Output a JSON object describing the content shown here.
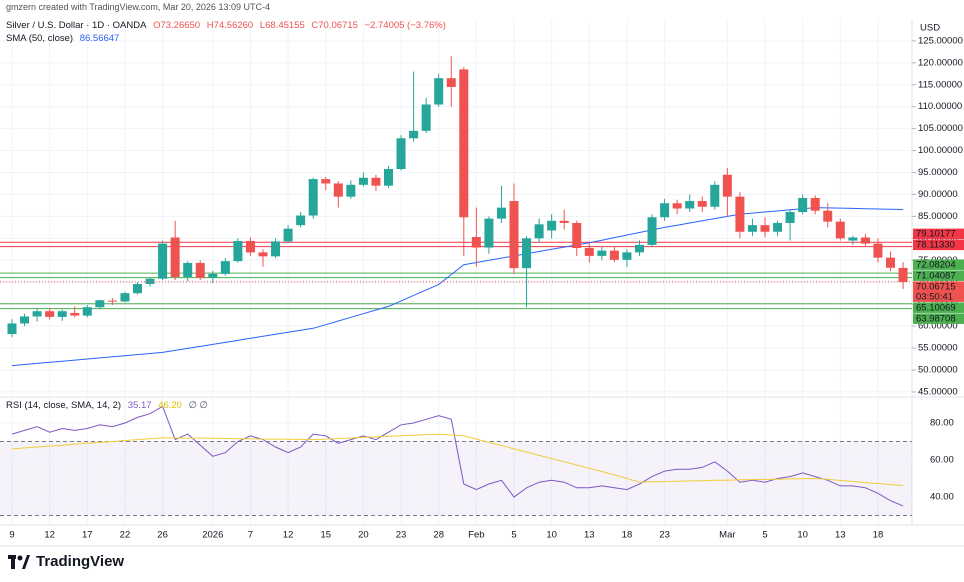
{
  "credit": "gmzern created with TradingView.com, Mar 20, 2026 13:09 UTC-4",
  "brand": "TradingView",
  "chart_data": [
    {
      "type": "candlestick",
      "title": "Silver / U.S. Dollar · 1D · OANDA",
      "ohlc_labels": [
        "O73.26650",
        "H74.56260",
        "L68.45155",
        "C70.06715"
      ],
      "change_label": "−2.74005 (−3.76%)",
      "currency": "USD",
      "countdown": "03:50:41",
      "categories": [
        "9",
        null,
        null,
        "12",
        null,
        null,
        "17",
        null,
        null,
        "22",
        null,
        null,
        "26",
        null,
        null,
        null,
        "2026",
        null,
        null,
        "7",
        null,
        null,
        "12",
        null,
        null,
        "15",
        null,
        null,
        "20",
        null,
        null,
        "23",
        null,
        null,
        "28",
        null,
        null,
        "Feb",
        null,
        null,
        "5",
        null,
        null,
        "10",
        null,
        null,
        "13",
        null,
        null,
        "18",
        null,
        null,
        "23",
        null,
        null,
        null,
        null,
        "Mar",
        null,
        null,
        "5",
        null,
        null,
        "10",
        null,
        null,
        "13",
        null,
        null,
        "18",
        null,
        null
      ],
      "ohlc": [
        [
          58.2,
          61.6,
          57.5,
          60.6
        ],
        [
          60.6,
          62.8,
          60.0,
          62.2
        ],
        [
          62.2,
          64.0,
          61.0,
          63.4
        ],
        [
          63.4,
          64.2,
          61.5,
          62.1
        ],
        [
          62.1,
          63.8,
          61.2,
          63.4
        ],
        [
          63.0,
          64.5,
          62.0,
          62.4
        ],
        [
          62.4,
          64.8,
          62.0,
          64.3
        ],
        [
          64.3,
          66.0,
          64.0,
          65.9
        ],
        [
          65.8,
          66.4,
          64.8,
          65.6
        ],
        [
          65.6,
          67.8,
          65.4,
          67.5
        ],
        [
          67.5,
          70.0,
          67.2,
          69.6
        ],
        [
          69.6,
          71.0,
          69.0,
          70.8
        ],
        [
          70.8,
          79.5,
          70.5,
          78.8
        ],
        [
          80.2,
          84.0,
          70.5,
          71.2
        ],
        [
          71.2,
          74.8,
          70.2,
          74.4
        ],
        [
          74.4,
          75.0,
          70.5,
          71.0
        ],
        [
          71.0,
          72.6,
          69.8,
          71.9
        ],
        [
          71.9,
          75.5,
          71.5,
          74.8
        ],
        [
          74.8,
          80.0,
          74.5,
          79.4
        ],
        [
          79.4,
          80.2,
          76.0,
          76.8
        ],
        [
          76.8,
          77.5,
          73.5,
          75.9
        ],
        [
          75.9,
          80.0,
          75.5,
          79.3
        ],
        [
          79.3,
          83.0,
          79.0,
          82.2
        ],
        [
          83.0,
          86.0,
          82.5,
          85.2
        ],
        [
          85.2,
          93.8,
          84.5,
          93.5
        ],
        [
          93.5,
          94.0,
          91.0,
          92.5
        ],
        [
          92.5,
          93.0,
          87.0,
          89.5
        ],
        [
          89.5,
          93.2,
          89.0,
          92.2
        ],
        [
          92.2,
          95.0,
          91.8,
          93.8
        ],
        [
          93.8,
          94.5,
          90.8,
          92.0
        ],
        [
          92.0,
          96.5,
          91.5,
          95.8
        ],
        [
          95.8,
          103.5,
          95.5,
          102.8
        ],
        [
          102.8,
          118.0,
          102.0,
          104.5
        ],
        [
          104.5,
          112.0,
          104.0,
          110.5
        ],
        [
          110.5,
          117.5,
          110.0,
          116.5
        ],
        [
          116.5,
          121.5,
          110.0,
          114.5
        ],
        [
          118.5,
          119.0,
          76.0,
          84.8
        ],
        [
          80.3,
          87.0,
          73.5,
          77.9
        ],
        [
          77.9,
          85.0,
          76.5,
          84.5
        ],
        [
          84.5,
          92.0,
          83.5,
          87.0
        ],
        [
          88.5,
          92.5,
          72.0,
          73.2
        ],
        [
          73.2,
          80.5,
          64.3,
          80.0
        ],
        [
          80.0,
          84.5,
          79.0,
          83.2
        ],
        [
          81.8,
          85.5,
          80.0,
          84.0
        ],
        [
          84.0,
          86.5,
          82.0,
          83.5
        ],
        [
          83.5,
          84.0,
          76.0,
          77.8
        ],
        [
          77.8,
          79.0,
          74.5,
          76.0
        ],
        [
          76.0,
          78.0,
          75.0,
          77.2
        ],
        [
          77.2,
          78.0,
          74.6,
          75.1
        ],
        [
          75.1,
          77.5,
          73.5,
          76.8
        ],
        [
          76.8,
          79.5,
          76.0,
          78.5
        ],
        [
          78.5,
          85.5,
          78.0,
          84.8
        ],
        [
          84.8,
          89.0,
          84.0,
          88.0
        ],
        [
          88.0,
          88.8,
          85.5,
          86.8
        ],
        [
          86.8,
          90.0,
          86.0,
          88.5
        ],
        [
          88.5,
          89.5,
          86.0,
          87.2
        ],
        [
          87.2,
          93.0,
          86.5,
          92.2
        ],
        [
          94.5,
          96.0,
          85.0,
          89.5
        ],
        [
          89.5,
          90.5,
          80.0,
          81.5
        ],
        [
          81.5,
          84.5,
          80.5,
          83.0
        ],
        [
          83.0,
          84.8,
          80.2,
          81.5
        ],
        [
          81.5,
          84.0,
          80.5,
          83.5
        ],
        [
          83.5,
          86.5,
          79.5,
          86.0
        ],
        [
          86.0,
          90.0,
          85.5,
          89.2
        ],
        [
          89.2,
          89.8,
          85.5,
          86.3
        ],
        [
          86.3,
          88.0,
          82.5,
          83.8
        ],
        [
          83.8,
          84.5,
          79.5,
          80.0
        ],
        [
          79.5,
          80.6,
          78.5,
          80.2
        ],
        [
          80.2,
          81.0,
          78.3,
          78.8
        ],
        [
          78.8,
          80.0,
          74.5,
          75.6
        ],
        [
          75.6,
          77.0,
          72.5,
          73.3
        ],
        [
          73.2665,
          74.5626,
          68.45155,
          70.06715
        ]
      ],
      "up_color": "#26a69a",
      "down_color": "#ef5350",
      "overlays": [
        {
          "name": "SMA (50, close)",
          "color": "#2962ff",
          "values": [
            51.0,
            51.25,
            51.5,
            51.75,
            52.0,
            52.25,
            52.5,
            52.75,
            53.0,
            53.25,
            53.5,
            53.75,
            54.0,
            54.46,
            54.92,
            55.38,
            55.83,
            56.29,
            56.75,
            57.21,
            57.67,
            58.13,
            58.58,
            59.04,
            59.5,
            60.33,
            61.17,
            62.0,
            62.83,
            63.67,
            64.5,
            65.75,
            67.0,
            68.25,
            69.5,
            71.75,
            74.0,
            74.5,
            75.0,
            75.5,
            76.0,
            76.5,
            77.0,
            77.5,
            78.0,
            78.5,
            79.0,
            79.58,
            80.17,
            80.75,
            81.33,
            81.92,
            82.5,
            83.0,
            83.5,
            84.0,
            84.5,
            85.0,
            85.5,
            85.75,
            86.0,
            86.25,
            86.5,
            86.75,
            87.0,
            86.94,
            86.88,
            86.82,
            86.76,
            86.69,
            86.63,
            86.56647
          ]
        }
      ],
      "levels": [
        {
          "value": 79.10177,
          "label": "79.10177",
          "color": "#f23645"
        },
        {
          "value": 78.1133,
          "label": "78.11330",
          "color": "#f23645"
        },
        {
          "value": 72.08204,
          "label": "72.08204",
          "color": "#4caf50"
        },
        {
          "value": 71.04087,
          "label": "71.04087",
          "color": "#4caf50"
        },
        {
          "value": 65.10069,
          "label": "65.10069",
          "color": "#4caf50"
        },
        {
          "value": 63.98708,
          "label": "63.98708",
          "color": "#4caf50"
        }
      ],
      "ylim": [
        44.3,
        129.3
      ],
      "yticks": [
        {
          "value": 45,
          "label": "45.00000"
        },
        {
          "value": 50,
          "label": "50.00000"
        },
        {
          "value": 55,
          "label": "55.00000"
        },
        {
          "value": 60,
          "label": "60.00000"
        },
        {
          "value": 65,
          "label": "65.00000"
        },
        {
          "value": 70,
          "label": "70.00000"
        },
        {
          "value": 75,
          "label": "75.00000"
        },
        {
          "value": 80,
          "label": "80.00000"
        },
        {
          "value": 85,
          "label": "85.00000"
        },
        {
          "value": 90,
          "label": "90.00000"
        },
        {
          "value": 95,
          "label": "95.00000"
        },
        {
          "value": 100,
          "label": "100.00000"
        },
        {
          "value": 105,
          "label": "105.00000"
        },
        {
          "value": 110,
          "label": "110.00000"
        },
        {
          "value": 115,
          "label": "115.00000"
        },
        {
          "value": 120,
          "label": "120.00000"
        },
        {
          "value": 125,
          "label": "125.00000"
        }
      ],
      "grid": true
    },
    {
      "type": "line",
      "title": "RSI (14, close, SMA, 14, 2)",
      "suffix": "∅ ∅",
      "series": [
        {
          "color": "#7e57c2",
          "values": [
            74,
            76,
            78,
            75,
            77,
            76,
            77,
            79,
            78,
            80,
            83,
            85,
            89,
            71,
            74,
            68,
            62,
            64,
            70,
            73,
            71,
            67,
            64,
            67,
            74,
            73,
            69,
            71,
            73,
            71,
            75,
            79,
            80,
            82,
            84,
            82,
            47,
            44,
            47,
            49,
            40,
            45,
            48,
            49,
            48,
            45,
            45,
            46,
            45,
            44,
            47,
            51,
            54,
            55,
            55,
            56,
            59,
            54,
            48,
            49,
            48,
            50,
            51,
            53,
            51,
            49,
            46,
            46,
            45,
            42,
            38,
            35.17
          ]
        },
        {
          "color": "#f2cc3a",
          "legend_label": "46.20",
          "values": [
            66,
            66.5,
            67,
            67.5,
            68,
            68.5,
            69,
            69.5,
            70,
            70.5,
            71,
            71.5,
            72,
            71.9,
            71.8,
            71.8,
            71.7,
            71.6,
            71.5,
            71.4,
            71.3,
            71.3,
            71.2,
            71.1,
            71.0,
            71.3,
            71.6,
            71.9,
            72.2,
            72.5,
            72.8,
            73.1,
            73.4,
            73.7,
            74.0,
            73.5,
            73.0,
            71.3,
            69.5,
            67.8,
            66.0,
            64.3,
            62.5,
            60.8,
            59.0,
            57.3,
            55.5,
            53.8,
            52.0,
            50.0,
            48.0,
            48.2,
            48.3,
            48.5,
            48.7,
            48.8,
            49.0,
            49.1,
            49.3,
            49.4,
            49.5,
            49.6,
            49.8,
            49.9,
            50.0,
            49.5,
            48.9,
            48.4,
            47.8,
            47.3,
            46.7,
            46.2
          ]
        }
      ],
      "bands": [
        30,
        70
      ],
      "band_color": "#7e57c2",
      "ylim": [
        26.5,
        92.4
      ],
      "yticks": [
        {
          "value": 40,
          "label": "40.00"
        },
        {
          "value": 60,
          "label": "60.00"
        },
        {
          "value": 80,
          "label": "80.00"
        }
      ]
    }
  ]
}
